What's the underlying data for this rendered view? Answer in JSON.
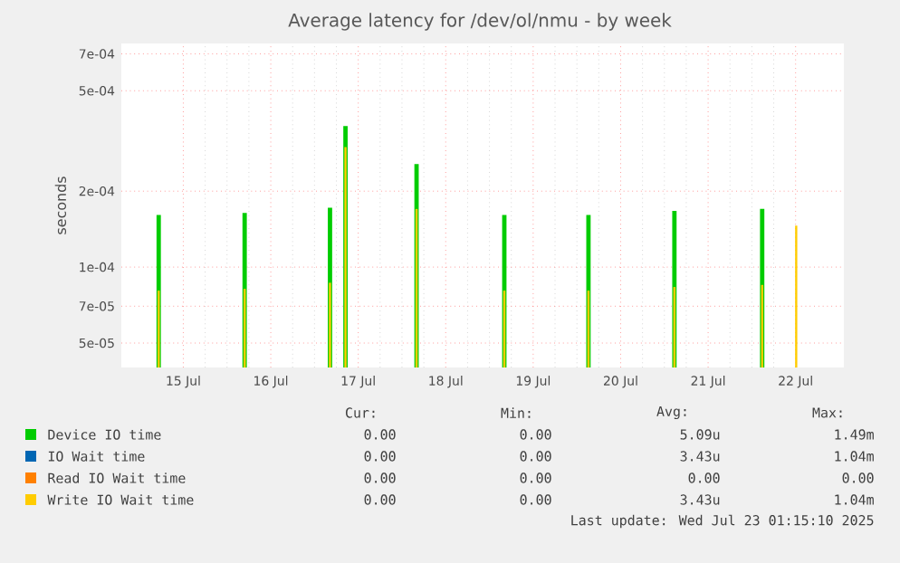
{
  "chart_data": {
    "type": "bar",
    "title": "Average latency for /dev/ol/nmu - by week",
    "ylabel": "seconds",
    "log": "y",
    "grid": true,
    "legend": "bottom",
    "x": [
      "2025-07-15T05:15",
      "2025-07-16T04:50",
      "2025-07-17T04:15",
      "2025-07-17T08:30",
      "2025-07-18T04:00",
      "2025-07-19T04:05",
      "2025-07-20T03:10",
      "2025-07-21T02:45",
      "2025-07-22T02:50",
      "2025-07-22T12:10"
    ],
    "xlim": [
      "2025-07-14T19:00",
      "2025-07-23T01:15"
    ],
    "xticks": [
      {
        "value": "2025-07-15T12:00",
        "label": "15 Jul"
      },
      {
        "value": "2025-07-16T12:00",
        "label": "16 Jul"
      },
      {
        "value": "2025-07-17T12:00",
        "label": "17 Jul"
      },
      {
        "value": "2025-07-18T12:00",
        "label": "18 Jul"
      },
      {
        "value": "2025-07-19T12:00",
        "label": "19 Jul"
      },
      {
        "value": "2025-07-20T12:00",
        "label": "20 Jul"
      },
      {
        "value": "2025-07-21T12:00",
        "label": "21 Jul"
      },
      {
        "value": "2025-07-22T12:00",
        "label": "22 Jul"
      }
    ],
    "ylim": [
      4e-05,
      0.00077
    ],
    "yticks": [
      {
        "value": 5e-05,
        "label": "5e-05"
      },
      {
        "value": 7e-05,
        "label": "7e-05"
      },
      {
        "value": 0.0001,
        "label": "1e-04"
      },
      {
        "value": 0.0002,
        "label": "2e-04"
      },
      {
        "value": 0.0005,
        "label": "5e-04"
      },
      {
        "value": 0.0007,
        "label": "7e-04"
      }
    ],
    "series": [
      {
        "name": "Device IO time",
        "color": "#00cc00",
        "values": [
          0.000161,
          0.000164,
          0.000172,
          0.000362,
          0.000256,
          0.000161,
          0.000161,
          0.000167,
          0.00017,
          null
        ]
      },
      {
        "name": "IO Wait time",
        "color": "#0066b3",
        "values": [
          null,
          null,
          null,
          null,
          null,
          null,
          null,
          null,
          null,
          null
        ]
      },
      {
        "name": "Read IO Wait time",
        "color": "#ff8000",
        "values": [
          null,
          null,
          null,
          null,
          null,
          null,
          null,
          null,
          null,
          null
        ]
      },
      {
        "name": "Write IO Wait time",
        "color": "#ffcc00",
        "values": [
          8.07e-05,
          8.2e-05,
          8.67e-05,
          0.000299,
          0.00017,
          8.07e-05,
          8.07e-05,
          8.34e-05,
          8.5e-05,
          0.000146
        ]
      }
    ],
    "annotations": [
      "Cur:",
      "Min:",
      "Avg:",
      "Max:",
      "0.00",
      "0.00",
      "5.09u",
      "1.49m",
      "0.00",
      "0.00",
      "3.43u",
      "1.04m",
      "0.00",
      "0.00",
      "0.00",
      "0.00",
      "0.00",
      "0.00",
      "3.43u",
      "1.04m",
      "Last update: Wed Jul 23 01:15:10 2025"
    ]
  }
}
